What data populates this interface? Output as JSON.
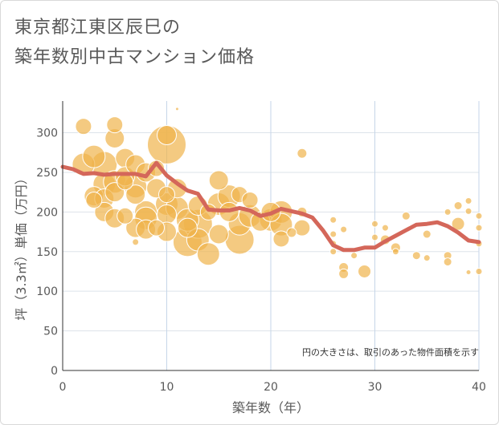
{
  "title": {
    "line1": "東京都江東区辰巳の",
    "line2": "築年数別中古マンション価格"
  },
  "colors": {
    "bubble": "#f0b44c",
    "bubble_stroke": "#ffffff",
    "line": "#d4675a",
    "grid": "#dde3ea",
    "axis": "#333333",
    "text": "#595959"
  },
  "chart_data": {
    "type": "scatter",
    "xlabel": "築年数（年）",
    "ylabel": "坪（3.3㎡）単価（万円）",
    "xlim": [
      0,
      40
    ],
    "ylim": [
      0,
      340
    ],
    "xticks": [
      "0",
      "10",
      "20",
      "30",
      "40"
    ],
    "yticks": [
      "0",
      "50",
      "100",
      "150",
      "200",
      "250",
      "300"
    ],
    "annotation": "円の大きさは、取引のあった物件面積を示す",
    "line_series": {
      "x": [
        0,
        1,
        2,
        3,
        4,
        5,
        6,
        7,
        8,
        9,
        10,
        11,
        12,
        13,
        14,
        15,
        16,
        17,
        18,
        19,
        20,
        21,
        22,
        23,
        24,
        25,
        26,
        27,
        28,
        29,
        30,
        31,
        32,
        33,
        34,
        35,
        36,
        37,
        38,
        39,
        40
      ],
      "y": [
        257,
        254,
        248,
        249,
        247,
        248,
        248,
        248,
        245,
        262,
        246,
        236,
        227,
        223,
        203,
        202,
        202,
        205,
        202,
        195,
        198,
        204,
        201,
        198,
        193,
        177,
        158,
        152,
        152,
        155,
        155,
        163,
        170,
        177,
        184,
        185,
        187,
        182,
        174,
        164,
        162
      ]
    },
    "bubbles": {
      "x": [
        2,
        2,
        3,
        3,
        3,
        4,
        4,
        4,
        4,
        5,
        5,
        5,
        5,
        5,
        6,
        6,
        6,
        6,
        7,
        7,
        7,
        7,
        8,
        8,
        8,
        8,
        9,
        9,
        9,
        10,
        10,
        10,
        10,
        10,
        10,
        11,
        11,
        12,
        12,
        12,
        13,
        13,
        13,
        14,
        14,
        15,
        15,
        15,
        16,
        16,
        17,
        17,
        17,
        18,
        18,
        19,
        20,
        20,
        21,
        21,
        21,
        22,
        23,
        23,
        26,
        26,
        26,
        26,
        27,
        27,
        27,
        28,
        29,
        30,
        30,
        31,
        31,
        32,
        32,
        33,
        34,
        35,
        35,
        37,
        37,
        37,
        38,
        38,
        39,
        39,
        39,
        40,
        40,
        40,
        40,
        11,
        7,
        23
      ],
      "y": [
        308,
        260,
        270,
        220,
        215,
        260,
        235,
        217,
        200,
        310,
        293,
        238,
        225,
        192,
        268,
        245,
        238,
        195,
        260,
        232,
        222,
        180,
        250,
        200,
        192,
        178,
        255,
        230,
        180,
        297,
        285,
        222,
        210,
        197,
        175,
        230,
        205,
        162,
        190,
        180,
        208,
        185,
        165,
        200,
        147,
        240,
        172,
        210,
        220,
        200,
        222,
        185,
        165,
        215,
        195,
        188,
        200,
        190,
        200,
        184,
        166,
        174,
        274,
        180,
        190,
        172,
        160,
        150,
        178,
        130,
        122,
        145,
        125,
        185,
        168,
        180,
        165,
        155,
        150,
        195,
        145,
        172,
        142,
        200,
        145,
        137,
        208,
        185,
        214,
        201,
        124,
        195,
        180,
        160,
        125,
        330,
        162,
        200
      ],
      "s": [
        10,
        14,
        14,
        12,
        10,
        16,
        14,
        12,
        12,
        10,
        12,
        14,
        12,
        12,
        12,
        12,
        10,
        10,
        12,
        14,
        12,
        12,
        12,
        14,
        14,
        12,
        10,
        12,
        10,
        12,
        24,
        10,
        14,
        12,
        12,
        12,
        14,
        18,
        14,
        12,
        12,
        18,
        14,
        10,
        14,
        12,
        12,
        14,
        14,
        12,
        10,
        14,
        18,
        10,
        14,
        12,
        12,
        14,
        14,
        14,
        10,
        6,
        6,
        10,
        4,
        4,
        4,
        4,
        4,
        6,
        6,
        4,
        8,
        4,
        4,
        4,
        6,
        6,
        4,
        5,
        5,
        5,
        4,
        4,
        5,
        5,
        5,
        8,
        4,
        4,
        3,
        4,
        4,
        4,
        4,
        2,
        4,
        6
      ]
    }
  }
}
